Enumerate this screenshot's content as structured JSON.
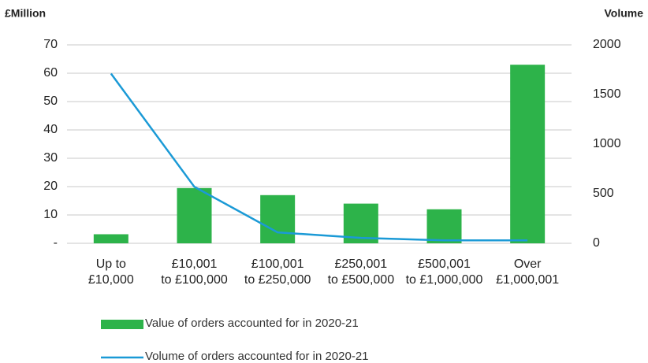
{
  "chart_data": {
    "type": "bar_line",
    "y_label": "£Million",
    "y2_label": "Volume",
    "categories": [
      [
        "Up to",
        "£10,000"
      ],
      [
        "£10,001",
        "to £100,000"
      ],
      [
        "£100,001",
        "to £250,000"
      ],
      [
        "£250,001",
        "to £500,000"
      ],
      [
        "£500,001",
        "to £1,000,000"
      ],
      [
        "Over",
        "£1,000,001"
      ]
    ],
    "series": [
      {
        "name": "Value of orders accounted for in 2020-21",
        "type": "bar",
        "color": "#2db34a",
        "values": [
          3.2,
          19.5,
          17,
          14,
          12,
          63
        ]
      },
      {
        "name": "Volume of orders accounted for in 2020-21",
        "type": "line",
        "axis": "y2",
        "color": "#1b9ad6",
        "values": [
          1710,
          570,
          110,
          55,
          30,
          30
        ]
      }
    ],
    "ylim": [
      0,
      70
    ],
    "yticks": [
      {
        "value": 0,
        "label": "-"
      },
      10,
      20,
      30,
      40,
      50,
      60,
      70
    ],
    "y2lim": [
      0,
      2000
    ],
    "y2ticks": [
      0,
      500,
      1000,
      1500,
      2000
    ],
    "grid": true
  }
}
